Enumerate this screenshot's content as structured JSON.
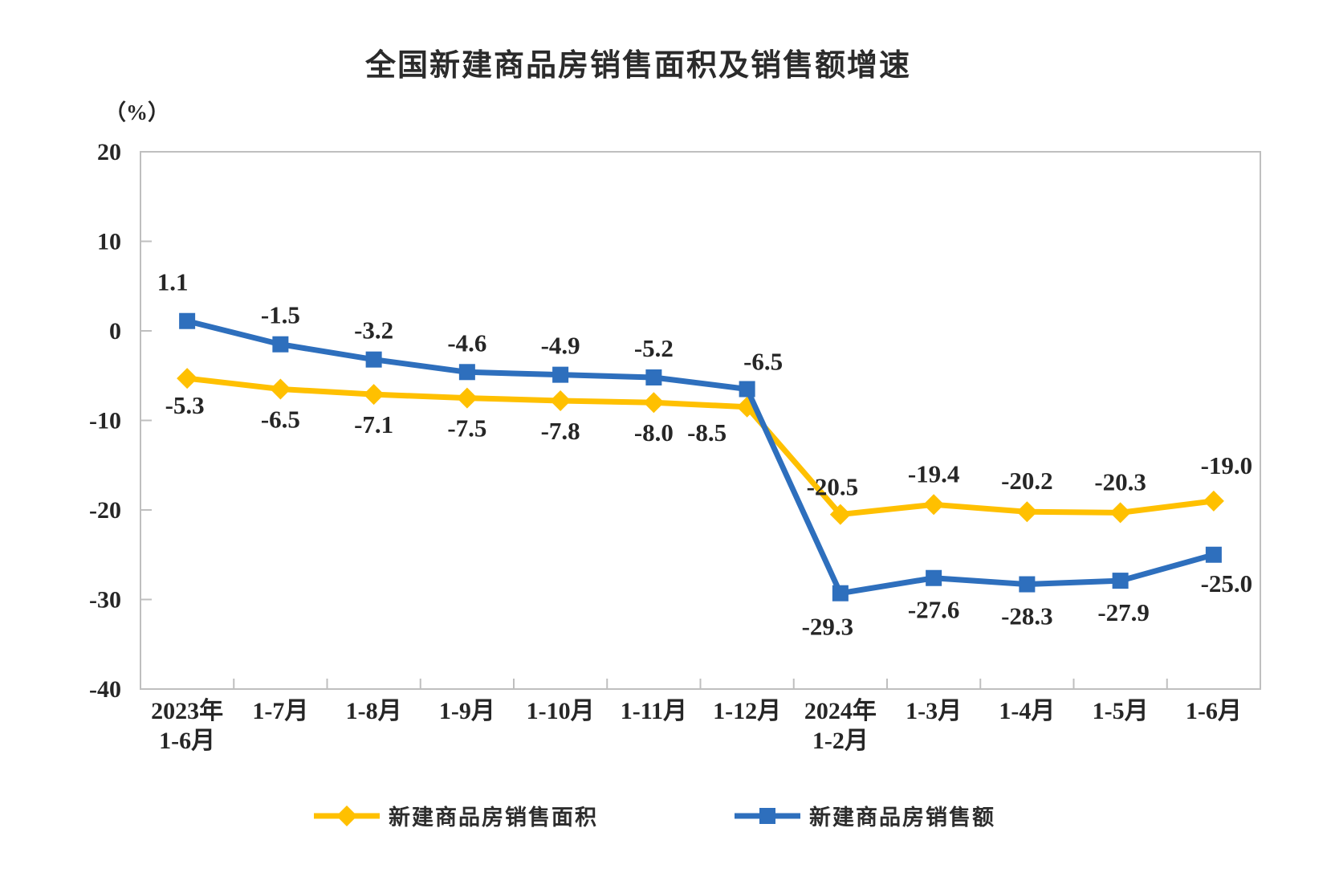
{
  "chart_data": {
    "type": "line",
    "title": "全国新建商品房销售面积及销售额增速",
    "unit_label": "（%）",
    "categories": [
      [
        "2023年",
        "1-6月"
      ],
      [
        "1-7月"
      ],
      [
        "1-8月"
      ],
      [
        "1-9月"
      ],
      [
        "1-10月"
      ],
      [
        "1-11月"
      ],
      [
        "1-12月"
      ],
      [
        "2024年",
        "1-2月"
      ],
      [
        "1-3月"
      ],
      [
        "1-4月"
      ],
      [
        "1-5月"
      ],
      [
        "1-6月"
      ]
    ],
    "y_axis": {
      "min": -40,
      "max": 20,
      "step": 10,
      "ticks": [
        20,
        10,
        0,
        -10,
        -20,
        -30,
        -40
      ]
    },
    "series": [
      {
        "name": "新建商品房销售面积",
        "color": "#FFC000",
        "marker": "diamond",
        "values": [
          -5.3,
          -6.5,
          -7.1,
          -7.5,
          -7.8,
          -8.0,
          -8.5,
          -20.5,
          -19.4,
          -20.2,
          -20.3,
          -19.0
        ]
      },
      {
        "name": "新建商品房销售额",
        "color": "#2E6FBD",
        "marker": "square",
        "values": [
          1.1,
          -1.5,
          -3.2,
          -4.6,
          -4.9,
          -5.2,
          -6.5,
          -29.3,
          -27.6,
          -28.3,
          -27.9,
          -25.0
        ]
      }
    ],
    "legend_position": "bottom",
    "grid": false,
    "axis_color": "#BFBFBF",
    "text_color": "#262626"
  }
}
